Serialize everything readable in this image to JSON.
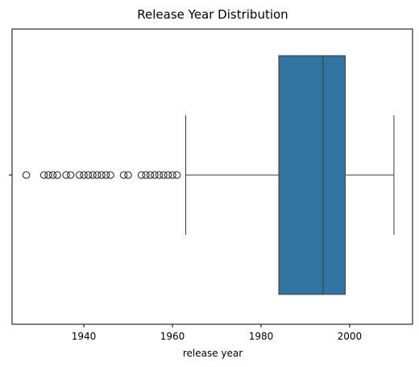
{
  "chart_data": {
    "type": "box",
    "orientation": "horizontal",
    "title": "Release Year Distribution",
    "xlabel": "release year",
    "ylabel": "",
    "xlim": [
      1923.8,
      2014.2
    ],
    "xticks": [
      1940,
      1960,
      1980,
      2000
    ],
    "box": {
      "whisker_low": 1963,
      "q1": 1984,
      "median": 1994,
      "q3": 1999,
      "whisker_high": 2010,
      "color": "#3274a1"
    },
    "outliers": [
      1927,
      1931,
      1932,
      1933,
      1934,
      1936,
      1937,
      1939,
      1940,
      1941,
      1942,
      1943,
      1944,
      1945,
      1946,
      1949,
      1950,
      1953,
      1954,
      1955,
      1956,
      1957,
      1958,
      1959,
      1960,
      1961
    ],
    "grid": false
  }
}
